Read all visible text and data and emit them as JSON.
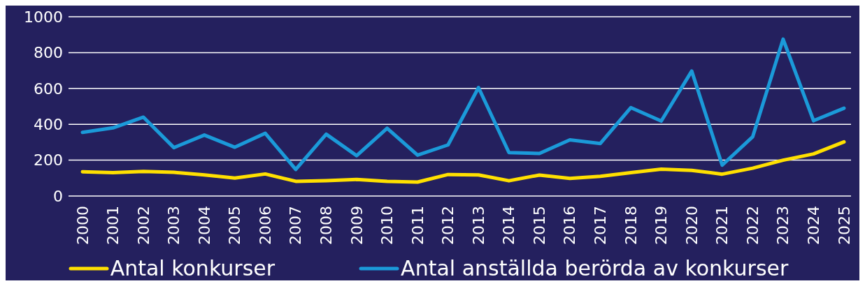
{
  "chart_data": {
    "type": "line",
    "categories": [
      "2000",
      "2001",
      "2002",
      "2003",
      "2004",
      "2005",
      "2006",
      "2007",
      "2008",
      "2009",
      "2010",
      "2011",
      "2012",
      "2013",
      "2014",
      "2015",
      "2016",
      "2017",
      "2018",
      "2019",
      "2020",
      "2021",
      "2022",
      "2023",
      "2024",
      "2025"
    ],
    "series": [
      {
        "name": "Antal konkurser",
        "color": "#ffe000",
        "values": [
          135,
          130,
          137,
          132,
          118,
          100,
          123,
          82,
          86,
          92,
          82,
          78,
          120,
          118,
          85,
          117,
          98,
          110,
          130,
          150,
          143,
          122,
          155,
          200,
          235,
          302
        ]
      },
      {
        "name": "Antal anställda berörda av konkurser",
        "color": "#1b9ad9",
        "values": [
          355,
          380,
          440,
          270,
          340,
          272,
          350,
          148,
          345,
          225,
          378,
          228,
          285,
          605,
          242,
          237,
          313,
          293,
          493,
          418,
          697,
          172,
          330,
          875,
          420,
          490
        ]
      }
    ],
    "ylim": [
      0,
      1000
    ],
    "yticks": [
      0,
      200,
      400,
      600,
      800,
      1000
    ],
    "grid": "y",
    "legend": "bottom",
    "marker": "none",
    "line_style": "solid"
  }
}
